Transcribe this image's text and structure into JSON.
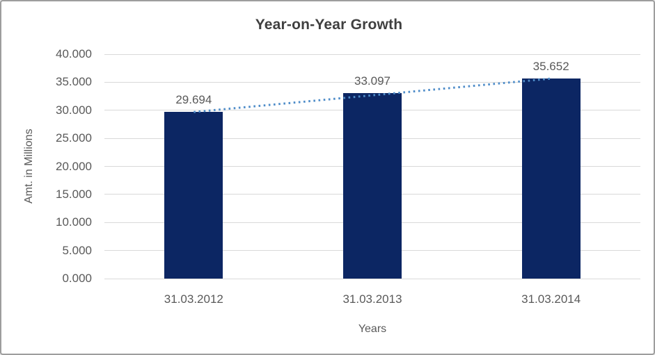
{
  "chart_data": {
    "type": "bar",
    "title": "Year-on-Year Growth",
    "xlabel": "Years",
    "ylabel": "Amt. in Millions",
    "categories": [
      "31.03.2012",
      "31.03.2013",
      "31.03.2014"
    ],
    "values": [
      29694,
      33097,
      35652
    ],
    "value_labels": [
      "29.694",
      "33.097",
      "35.652"
    ],
    "series": [
      {
        "name": "Amt. in Millions",
        "values": [
          29694,
          33097,
          35652
        ]
      }
    ],
    "y_ticks": [
      {
        "value": 0,
        "label": "0.000"
      },
      {
        "value": 5000,
        "label": "5.000"
      },
      {
        "value": 10000,
        "label": "10.000"
      },
      {
        "value": 15000,
        "label": "15.000"
      },
      {
        "value": 20000,
        "label": "20.000"
      },
      {
        "value": 25000,
        "label": "25.000"
      },
      {
        "value": 30000,
        "label": "30.000"
      },
      {
        "value": 35000,
        "label": "35.000"
      },
      {
        "value": 40000,
        "label": "40.000"
      }
    ],
    "ylim": [
      0,
      40000
    ],
    "grid": true,
    "legend": "none",
    "trendline": {
      "type": "linear",
      "style": "dotted"
    },
    "colors": {
      "bar": "#0c2663",
      "trendline": "#4f8dc9",
      "gridline": "#d9d9d9",
      "title_text": "#3f3f3f",
      "axis_text": "#595959",
      "border": "#9d9d9d",
      "background": "#ffffff"
    }
  }
}
